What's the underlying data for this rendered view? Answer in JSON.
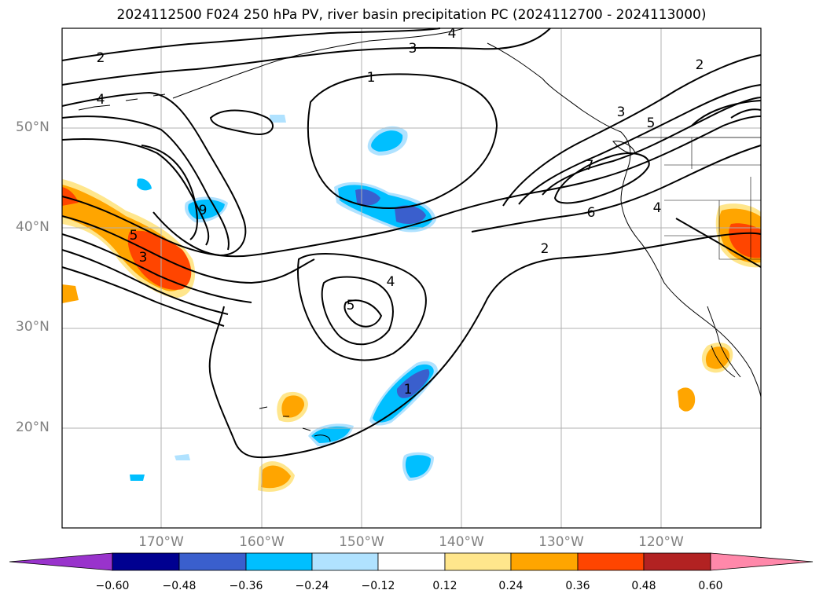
{
  "title": "2024112500 F024 250 hPa PV, river basin precipitation PC (2024112700 - 2024113000)",
  "map": {
    "projection": "PlateCarree",
    "lon_range": [
      -180,
      -110
    ],
    "lat_range": [
      10,
      60
    ],
    "gridlines": true,
    "lat_labels": [
      "50°N",
      "40°N",
      "30°N",
      "20°N"
    ],
    "lon_labels": [
      "170°W",
      "160°W",
      "150°W",
      "140°W",
      "130°W",
      "120°W"
    ],
    "pv_contour_labels": [
      "2",
      "4",
      "3",
      "1",
      "4",
      "3",
      "5",
      "2",
      "7",
      "6",
      "4",
      "2",
      "4",
      "5",
      "9",
      "5",
      "3",
      "1"
    ]
  },
  "colorbar": {
    "extend": "both",
    "ticks": [
      "−0.60",
      "−0.48",
      "−0.36",
      "−0.24",
      "−0.12",
      "0.12",
      "0.24",
      "0.36",
      "0.48",
      "0.60"
    ],
    "colors": [
      "#9933cc",
      "#000090",
      "#3a5fcd",
      "#00bfff",
      "#b0e2ff",
      "#ffffff",
      "#ffe68c",
      "#ffa500",
      "#ff4500",
      "#b22222",
      "#ff88aa"
    ]
  }
}
